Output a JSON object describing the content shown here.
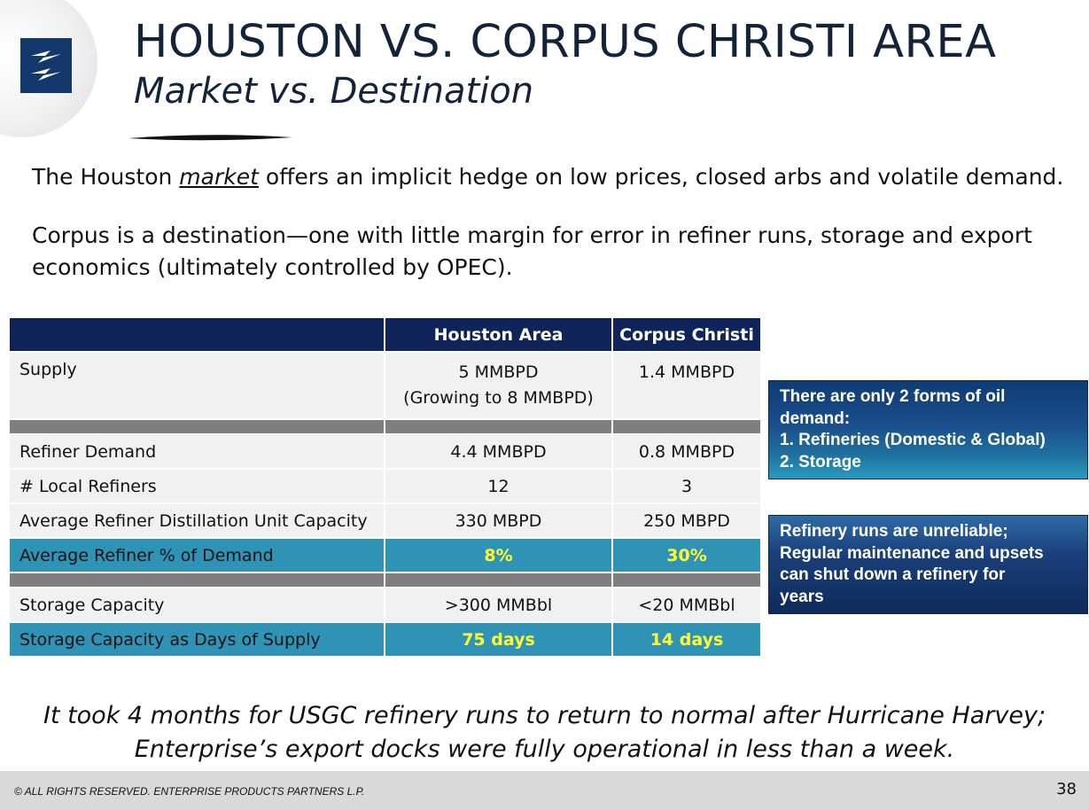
{
  "title": "HOUSTON VS. CORPUS CHRISTI AREA",
  "subtitle": "Market vs. Destination",
  "intro": {
    "line1_before": "The Houston ",
    "line1_emphasis": "market",
    "line1_after": " offers an implicit hedge on low prices, closed arbs and volatile demand.",
    "line2": "Corpus is a destination—one with little margin for error in refiner runs, storage and export economics (ultimately controlled by OPEC)."
  },
  "table": {
    "headers": [
      "",
      "Houston Area",
      "Corpus Christi"
    ],
    "rows": {
      "supply": {
        "label": "Supply",
        "houston": "5 MMBPD",
        "houston_sub": "(Growing to 8 MMBPD)",
        "corpus": "1.4 MMBPD"
      },
      "refiner_demand": {
        "label": "Refiner Demand",
        "houston": "4.4 MMBPD",
        "corpus": "0.8 MMBPD"
      },
      "local_refiners": {
        "label": "# Local Refiners",
        "houston": "12",
        "corpus": "3"
      },
      "avg_capacity": {
        "label": "Average Refiner Distillation Unit Capacity",
        "houston": "330 MBPD",
        "corpus": "250 MBPD"
      },
      "avg_pct_demand": {
        "label": "Average Refiner % of Demand",
        "houston": "8%",
        "corpus": "30%"
      },
      "storage_capacity": {
        "label": "Storage Capacity",
        "houston": ">300 MMBbl",
        "corpus": "<20 MMBbl"
      },
      "storage_days": {
        "label": "Storage Capacity as Days of Supply",
        "houston": "75 days",
        "corpus": "14 days"
      }
    }
  },
  "callouts": {
    "first": [
      "There are only 2 forms of oil",
      "demand:",
      "1. Refineries (Domestic & Global)",
      "2. Storage"
    ],
    "second": [
      "Refinery runs are unreliable;",
      "Regular maintenance and upsets",
      "can shut down a refinery for",
      "years"
    ]
  },
  "bottom_note": {
    "line1": "It took 4 months for USGC refinery runs to return to normal after Hurricane Harvey;",
    "line2": "Enterprise’s export docks were fully operational in less than a week."
  },
  "footer": {
    "copyright": "© ALL RIGHTS RESERVED. ENTERPRISE PRODUCTS PARTNERS L.P.",
    "page_number": "38"
  },
  "colors": {
    "header_navy": "#0f2459",
    "highlight_teal": "#2f93b5",
    "highlight_text": "#ffff33",
    "separator_gray": "#7f7f7f",
    "row_gray": "#f1f1f1",
    "logo_blue": "#13386b"
  }
}
